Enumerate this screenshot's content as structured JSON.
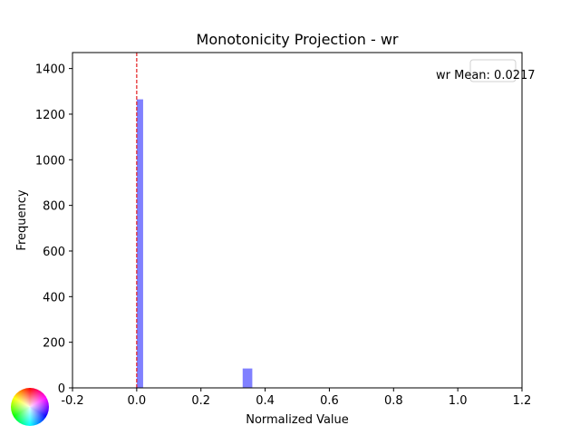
{
  "chart_data": {
    "type": "bar",
    "title": "Monotonicity Projection - wr",
    "xlabel": "Normalized Value",
    "ylabel": "Frequency",
    "xlim": [
      -0.2,
      1.2
    ],
    "ylim": [
      0,
      1470
    ],
    "x_ticks": [
      "-0.2",
      "0.0",
      "0.2",
      "0.4",
      "0.6",
      "0.8",
      "1.0",
      "1.2"
    ],
    "y_ticks": [
      "0",
      "200",
      "400",
      "600",
      "800",
      "1000",
      "1200",
      "1400"
    ],
    "bins": [
      {
        "x0": 0.0,
        "x1": 0.02,
        "count": 1265
      },
      {
        "x0": 0.33,
        "x1": 0.36,
        "count": 85
      }
    ],
    "bar_color": "#8080ff",
    "mean_line": {
      "value": 0.0,
      "color": "#e41a1c",
      "style": "dashed"
    },
    "legend": {
      "text": "wr Mean: 0.0217",
      "placement": "top-right"
    },
    "grid": false
  }
}
